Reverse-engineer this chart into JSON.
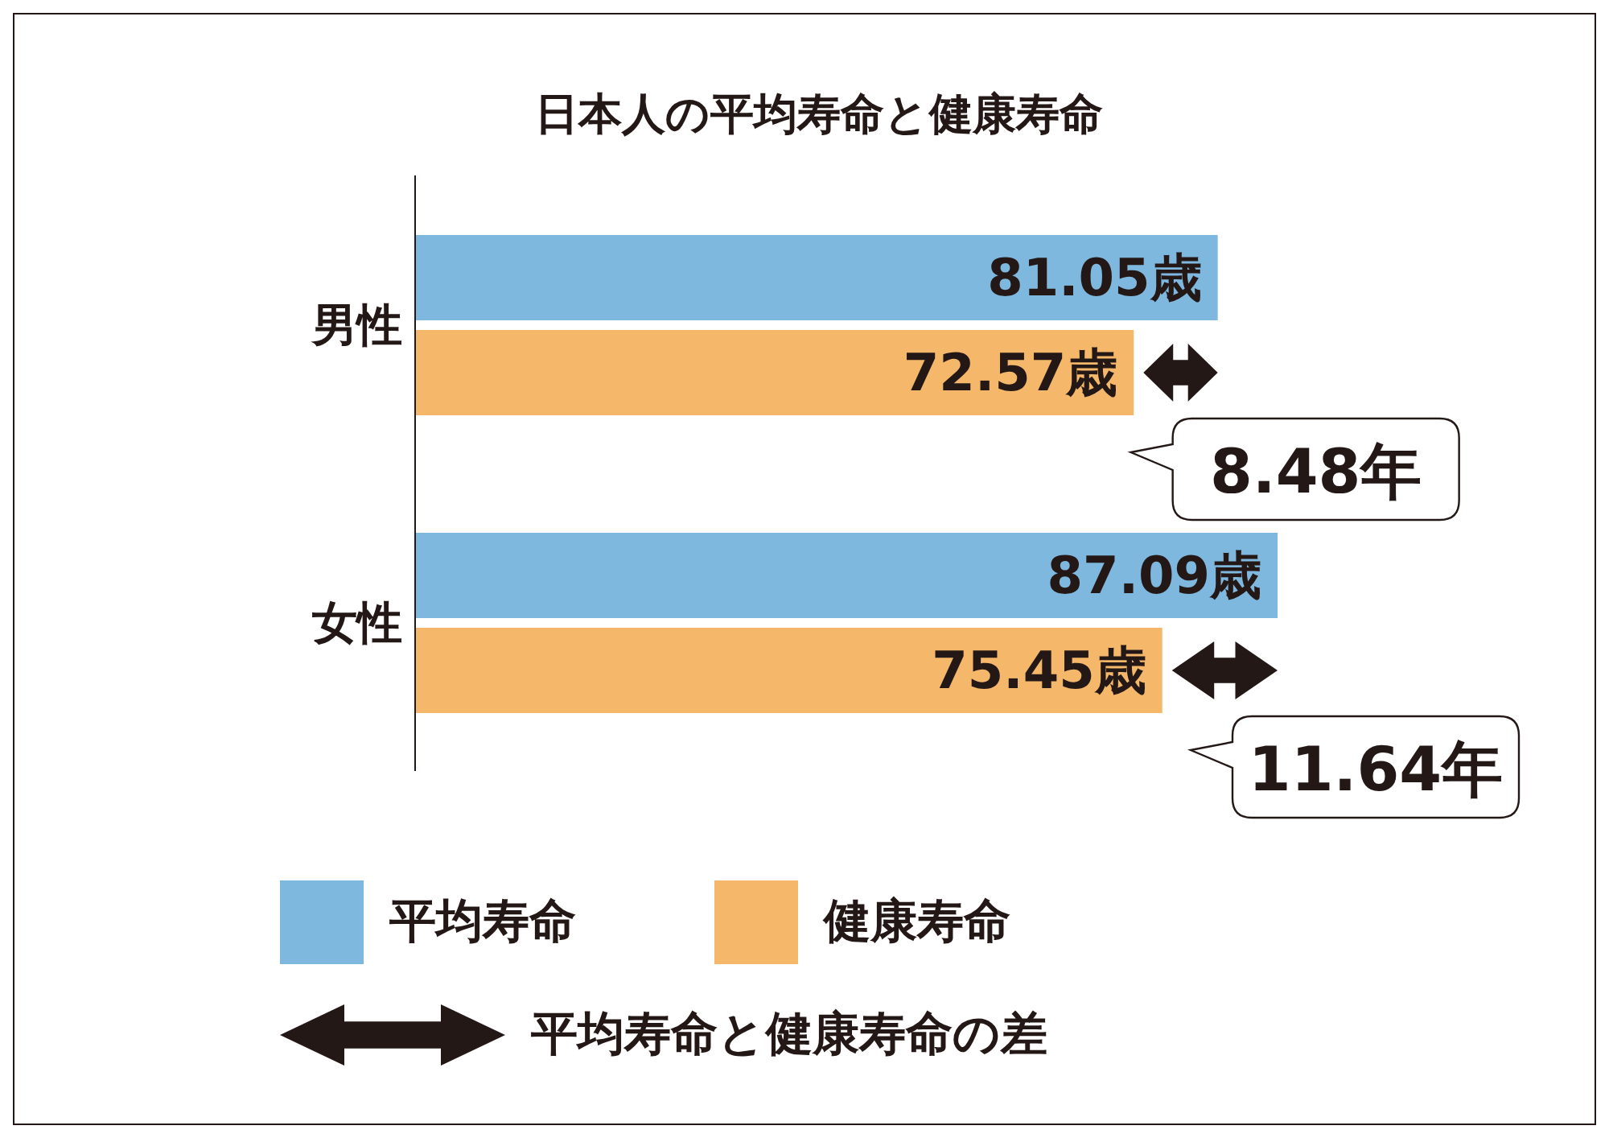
{
  "chart_data": {
    "type": "bar",
    "orientation": "horizontal",
    "title": "日本人の平均寿命と健康寿命",
    "categories": [
      "男性",
      "女性"
    ],
    "series": [
      {
        "name": "平均寿命",
        "color": "#7fb8de",
        "values": [
          81.05,
          87.09
        ],
        "value_labels": [
          "81.05歳",
          "87.09歳"
        ]
      },
      {
        "name": "健康寿命",
        "color": "#f5b76a",
        "values": [
          72.57,
          75.45
        ],
        "value_labels": [
          "72.57歳",
          "75.45歳"
        ]
      }
    ],
    "tick_labels": "y",
    "grid": false,
    "legend": "bottom",
    "annotations": [
      {
        "text": "8.48年",
        "x": 81.05,
        "y": "男性"
      },
      {
        "text": "11.64年",
        "x": 87.09,
        "y": "女性"
      },
      "平均寿命と健康寿命の差"
    ]
  }
}
